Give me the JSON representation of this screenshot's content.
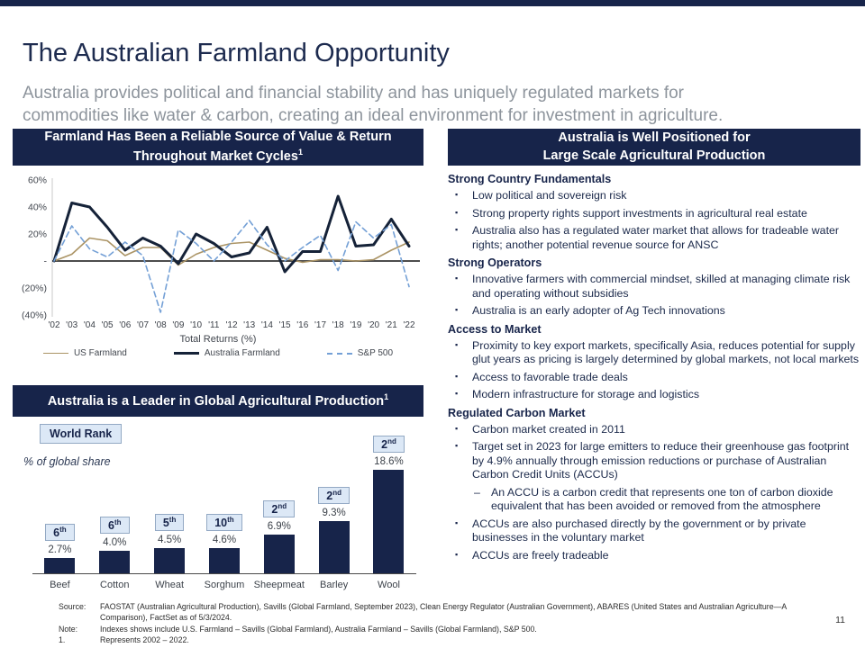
{
  "page": {
    "title": "The Australian Farmland Opportunity",
    "subtitle": "Australia provides political and financial stability and has uniquely regulated markets for commodities like water & carbon, creating an ideal environment for investment in agriculture.",
    "page_number": "11"
  },
  "colors": {
    "navy": "#17244a",
    "tan": "#ab9465",
    "blue": "#74a0d6",
    "badge_bg": "#dce8f6",
    "badge_border": "#93a9c4"
  },
  "left_panel": {
    "header1_line1": "Farmland Has Been a Reliable Source of Value & Return",
    "header1_line2": "Throughout Market Cycles",
    "header1_sup": "1",
    "header2": "Australia is a Leader in Global Agricultural Production",
    "header2_sup": "1",
    "world_rank_label": "World Rank",
    "global_share_label": "% of global share"
  },
  "right_panel": {
    "header_line1": "Australia is Well Positioned for",
    "header_line2": "Large Scale Agricultural Production",
    "sections": [
      {
        "heading": "Strong Country Fundamentals",
        "bullets": [
          {
            "text": "Low political and sovereign risk"
          },
          {
            "text": "Strong property rights support investments in agricultural real estate"
          },
          {
            "text": "Australia also has a regulated water market that allows for tradeable water rights; another potential revenue source for ANSC"
          }
        ]
      },
      {
        "heading": "Strong Operators",
        "bullets": [
          {
            "text": "Innovative farmers with commercial mindset, skilled at managing climate risk and operating without subsidies"
          },
          {
            "text": "Australia is an early adopter of Ag Tech innovations"
          }
        ]
      },
      {
        "heading": "Access to Market",
        "bullets": [
          {
            "text": "Proximity to key export markets, specifically Asia, reduces potential for supply glut years as pricing is largely determined by global markets, not local markets"
          },
          {
            "text": "Access to favorable trade deals"
          },
          {
            "text": "Modern infrastructure for storage and logistics"
          }
        ]
      },
      {
        "heading": "Regulated Carbon Market",
        "bullets": [
          {
            "text": "Carbon market created in 2011"
          },
          {
            "text": "Target set in 2023 for large emitters to reduce their greenhouse gas footprint by 4.9% annually through emission reductions or purchase of Australian Carbon Credit Units (ACCUs)",
            "sub": [
              "An ACCU is a carbon credit that represents one ton of carbon dioxide equivalent that has been avoided or removed from the atmosphere"
            ]
          },
          {
            "text": "ACCUs are also purchased directly by the government or by private businesses in the voluntary market"
          },
          {
            "text": "ACCUs are freely tradeable"
          }
        ]
      }
    ]
  },
  "chart_data": [
    {
      "type": "line",
      "title": "Farmland Has Been a Reliable Source of Value & Return Throughout Market Cycles",
      "axis_title": "Total Returns (%)",
      "x": [
        "'02",
        "'03",
        "'04",
        "'05",
        "'06",
        "'07",
        "'08",
        "'09",
        "'10",
        "'11",
        "'12",
        "'13",
        "'14",
        "'15",
        "'16",
        "'17",
        "'18",
        "'19",
        "'20",
        "'21",
        "'22"
      ],
      "ylim": [
        -40,
        60
      ],
      "yticks": [
        {
          "v": 60,
          "label": "60%"
        },
        {
          "v": 40,
          "label": "40%"
        },
        {
          "v": 20,
          "label": "20%"
        },
        {
          "v": 0,
          "label": "-"
        },
        {
          "v": -20,
          "label": "(20%)"
        },
        {
          "v": -40,
          "label": "(40%)"
        }
      ],
      "legend_position": "bottom",
      "grid": false,
      "series": [
        {
          "name": "US Farmland",
          "color": "#ab9465",
          "dash": "",
          "width": 1.6,
          "values": [
            0,
            5,
            17,
            15,
            4,
            10,
            10,
            -3,
            5,
            10,
            13,
            14,
            8,
            2,
            -1,
            1,
            1,
            0,
            1,
            8,
            14
          ]
        },
        {
          "name": "Australia Farmland",
          "color": "#152238",
          "dash": "",
          "width": 3,
          "values": [
            0,
            43,
            40,
            25,
            8,
            17,
            11,
            -2,
            20,
            13,
            3,
            6,
            25,
            -8,
            7,
            7,
            48,
            11,
            12,
            31,
            11
          ]
        },
        {
          "name": "S&P 500",
          "color": "#74a0d6",
          "dash": "6,4",
          "width": 1.6,
          "values": [
            0,
            26,
            9,
            3,
            14,
            4,
            -38,
            23,
            13,
            0,
            14,
            30,
            12,
            0,
            10,
            19,
            -7,
            29,
            17,
            27,
            -19
          ]
        }
      ]
    },
    {
      "type": "bar",
      "title": "Australia is a Leader in Global Agricultural Production",
      "badge_label": "World Rank",
      "axis_note": "% of global share",
      "categories": [
        "Beef",
        "Cotton",
        "Wheat",
        "Sorghum",
        "Sheepmeat",
        "Barley",
        "Wool"
      ],
      "values": [
        2.7,
        4.0,
        4.5,
        4.6,
        6.9,
        9.3,
        18.6
      ],
      "value_labels": [
        "2.7%",
        "4.0%",
        "4.5%",
        "4.6%",
        "6.9%",
        "9.3%",
        "18.6%"
      ],
      "ranks": [
        {
          "num": "6",
          "suffix": "th"
        },
        {
          "num": "6",
          "suffix": "th"
        },
        {
          "num": "5",
          "suffix": "th"
        },
        {
          "num": "10",
          "suffix": "th"
        },
        {
          "num": "2",
          "suffix": "nd"
        },
        {
          "num": "2",
          "suffix": "nd"
        },
        {
          "num": "2",
          "suffix": "nd"
        }
      ],
      "bar_color": "#17244a"
    }
  ],
  "footer": {
    "rows": [
      {
        "label": "Source:",
        "text": "FAOSTAT (Australian Agricultural Production), Savills (Global Farmland, September 2023), Clean Energy Regulator (Australian Government), ABARES (United States and Australian Agriculture—A Comparison), FactSet as of 5/3/2024."
      },
      {
        "label": "Note:",
        "text": "Indexes shows include U.S. Farmland – Savills (Global Farmland), Australia Farmland – Savills (Global Farmland), S&P 500."
      },
      {
        "label": "1.",
        "text": "Represents 2002 – 2022."
      }
    ]
  }
}
